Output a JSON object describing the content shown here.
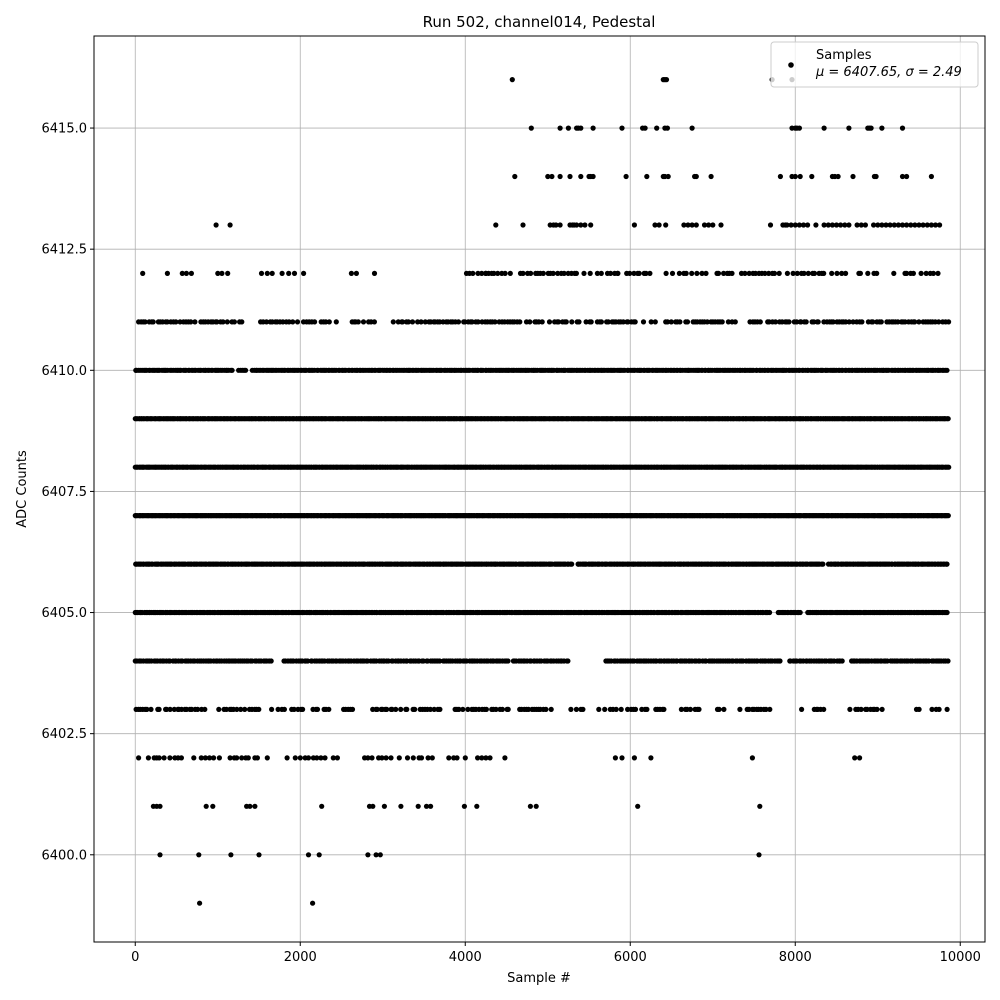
{
  "chart_data": {
    "type": "scatter",
    "title": "Run 502, channel014, Pedestal",
    "xlabel": "Sample #",
    "ylabel": "ADC Counts",
    "xlim": [
      -500,
      10300
    ],
    "ylim": [
      6398.2,
      6416.9
    ],
    "xticks": [
      0,
      2000,
      4000,
      6000,
      8000,
      10000
    ],
    "xtick_labels": [
      "0",
      "2000",
      "4000",
      "6000",
      "8000",
      "10000"
    ],
    "yticks": [
      6400.0,
      6402.5,
      6405.0,
      6407.5,
      6410.0,
      6412.5,
      6415.0
    ],
    "ytick_labels": [
      "6400.0",
      "6402.5",
      "6405.0",
      "6407.5",
      "6410.0",
      "6412.5",
      "6415.0"
    ],
    "grid": true,
    "legend_position": "top-right",
    "marker_color": "#000000",
    "n_samples": 9870,
    "series": [
      {
        "name": "Samples",
        "legend_stats": "μ = 6407.65, σ = 2.49",
        "levels": [
          {
            "y": 6416,
            "x": [
              4570,
              6400,
              6420,
              6440,
              7720,
              7960
            ]
          },
          {
            "y": 6415,
            "x": [
              4800,
              5150,
              5250,
              5350,
              5370,
              5400,
              5550,
              5900,
              6150,
              6180,
              6320,
              6420,
              6450,
              6750,
              7960,
              8000,
              8020,
              8050,
              8350,
              8650,
              8880,
              8900,
              8920,
              9050,
              9300
            ]
          },
          {
            "y": 6414,
            "x": [
              4600,
              5000,
              5050,
              5150,
              5270,
              5400,
              5500,
              5520,
              5550,
              5950,
              6200,
              6400,
              6420,
              6460,
              6780,
              6800,
              6980,
              7820,
              7960,
              8000,
              8060,
              8200,
              8450,
              8480,
              8520,
              8700,
              8960,
              8980,
              9300,
              9350,
              9650
            ]
          },
          {
            "y": 6413,
            "x": [
              980,
              1150,
              4370,
              4700,
              5030,
              5070,
              5100,
              5150,
              5270,
              5300,
              5320,
              5350,
              5400,
              5450,
              5520,
              6050,
              6300,
              6350,
              6430,
              6650,
              6700,
              6750,
              6800,
              6900,
              6950,
              7000,
              7100,
              7700,
              7850,
              7880,
              7900,
              7950,
              8000,
              8050,
              8100,
              8150,
              8250,
              8350,
              8400,
              8450,
              8500,
              8550,
              8600,
              8650,
              8750,
              8800,
              8850,
              8950,
              9000,
              9050,
              9100,
              9150,
              9200,
              9250,
              9300,
              9350,
              9400,
              9450,
              9500,
              9550,
              9600,
              9650,
              9700,
              9750
            ]
          }
        ],
        "band_ranges": [
          {
            "y": 6412,
            "from": 4000,
            "to": 9780,
            "step": 40,
            "extra": [
              90,
              390,
              570,
              620,
              680,
              1000,
              1050,
              1120,
              1530,
              1600,
              1660,
              1780,
              1860,
              1930,
              2040,
              2620,
              2680,
              2900,
              4250,
              4700,
              5850
            ]
          },
          {
            "y": 6411,
            "from": 40,
            "to": 9870,
            "step": 30,
            "gaps": [
              [
                1300,
                1490
              ],
              [
                2450,
                2580
              ],
              [
                2900,
                3100
              ],
              [
                7300,
                7450
              ]
            ]
          },
          {
            "y": 6410,
            "from": 0,
            "to": 9850,
            "step": 20,
            "gaps": [
              [
                1200,
                1250
              ],
              [
                1350,
                1400
              ]
            ]
          },
          {
            "y": 6409,
            "from": 0,
            "to": 9860,
            "step": 14,
            "gaps": []
          },
          {
            "y": 6408,
            "from": 0,
            "to": 9860,
            "step": 14,
            "gaps": []
          },
          {
            "y": 6407,
            "from": 0,
            "to": 9860,
            "step": 14,
            "gaps": []
          },
          {
            "y": 6406,
            "from": 0,
            "to": 9860,
            "step": 18,
            "gaps": [
              [
                5300,
                5350
              ],
              [
                8350,
                8400
              ]
            ]
          },
          {
            "y": 6405,
            "from": 0,
            "to": 9860,
            "step": 18,
            "gaps": [
              [
                7700,
                7780
              ],
              [
                8080,
                8140
              ]
            ]
          },
          {
            "y": 6404,
            "from": 0,
            "to": 9860,
            "step": 25,
            "gaps": [
              [
                1650,
                1780
              ],
              [
                4550,
                4580
              ],
              [
                5250,
                5700
              ],
              [
                7850,
                7920
              ],
              [
                8600,
                8650
              ]
            ]
          },
          {
            "y": 6403,
            "from": 0,
            "to": 9860,
            "step": 30,
            "gaps": [
              [
                200,
                250
              ],
              [
                1500,
                1650
              ],
              [
                2400,
                2500
              ],
              [
                3700,
                3850
              ],
              [
                5050,
                5250
              ],
              [
                5450,
                5600
              ],
              [
                6500,
                6620
              ],
              [
                6850,
                7050
              ],
              [
                7150,
                7300
              ],
              [
                7700,
                8050
              ],
              [
                8100,
                8230
              ],
              [
                8350,
                8650
              ],
              [
                9100,
                9450
              ],
              [
                9550,
                9650
              ]
            ]
          }
        ],
        "sparse_levels": [
          {
            "y": 6402,
            "x": [
              40,
              160,
              230,
              260,
              290,
              350,
              420,
              480,
              520,
              560,
              710,
              800,
              850,
              900,
              950,
              1020,
              1150,
              1200,
              1230,
              1290,
              1340,
              1370,
              1450,
              1480,
              1600,
              1840,
              1940,
              2000,
              2060,
              2100,
              2160,
              2200,
              2250,
              2300,
              2400,
              2450,
              2780,
              2820,
              2870,
              2950,
              2990,
              3040,
              3100,
              3200,
              3300,
              3370,
              3440,
              3470,
              3550,
              3600,
              3800,
              3860,
              3900,
              4000,
              4150,
              4200,
              4250,
              4300,
              4480,
              5820,
              5900,
              6050,
              6250,
              7480,
              8720,
              8780
            ]
          },
          {
            "y": 6401,
            "x": [
              220,
              260,
              300,
              860,
              940,
              1350,
              1390,
              1450,
              2260,
              2840,
              2880,
              3020,
              3220,
              3430,
              3530,
              3580,
              3990,
              4140,
              4790,
              4860,
              6090,
              7570
            ]
          },
          {
            "y": 6400,
            "x": [
              300,
              770,
              1160,
              1500,
              2100,
              2230,
              2820,
              2920,
              2970,
              7560
            ]
          },
          {
            "y": 6399,
            "x": [
              780,
              2150
            ]
          }
        ]
      }
    ]
  }
}
